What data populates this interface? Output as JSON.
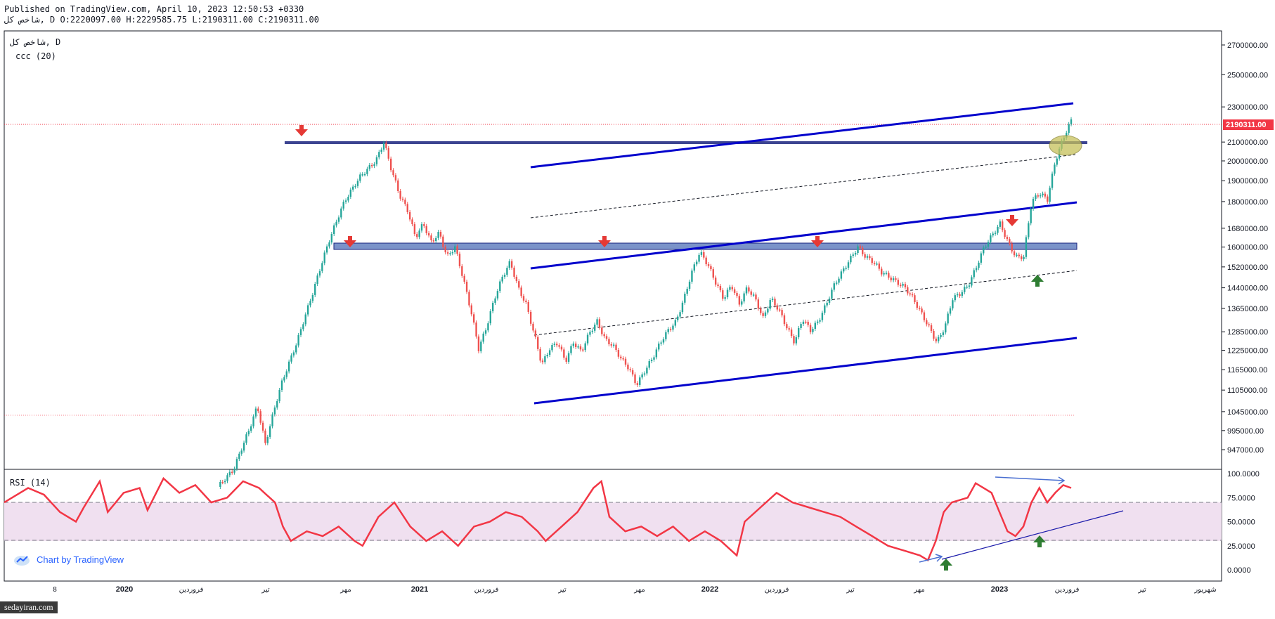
{
  "header": {
    "published": "Published on TradingView.com, April 10, 2023 12:50:53 +0330",
    "ohlc": "شاخص کل, D O:2220097.00 H:2229585.75 L:2190311.00 C:2190311.00"
  },
  "legend": {
    "symbol": "شاخص کل, D",
    "indicator": "ccc (20)"
  },
  "rsi_label": "RSI (14)",
  "watermark": "Chart by TradingView",
  "site_badge": "sedayiran.com",
  "colors": {
    "up": "#26a69a",
    "down": "#ef5350",
    "channel": "#0000cc",
    "zone_fill": "#7b93c9",
    "zone_border": "#1a237e",
    "rsi_line": "#f23645",
    "rsi_band": "#f0e0f0",
    "price_tag": "#f23645",
    "arrow_down": "#e53935",
    "arrow_up": "#2e7d32",
    "ellipse": "#c6c15a"
  },
  "chart_data": {
    "type": "candlestick",
    "timeframe": "D",
    "price_axis": {
      "ticks": [
        "2700000.00",
        "2500000.00",
        "2300000.00",
        "2100000.00",
        "2000000.00",
        "1900000.00",
        "1800000.00",
        "1680000.00",
        "1600000.00",
        "1520000.00",
        "1440000.00",
        "1365000.00",
        "1285000.00",
        "1225000.00",
        "1165000.00",
        "1105000.00",
        "1045000.00",
        "995000.00",
        "947000.00"
      ],
      "last_price": "2190311.00",
      "scale": "log"
    },
    "rsi_axis": {
      "ticks": [
        "100.0000",
        "75.0000",
        "50.0000",
        "25.0000",
        "0.0000"
      ],
      "band_upper": 70,
      "band_lower": 30
    },
    "x_axis": [
      "8",
      "2020",
      "فروردین",
      "تیر",
      "مهر",
      "2021",
      "فروردین",
      "تیر",
      "مهر",
      "2022",
      "فروردین",
      "تیر",
      "مهر",
      "2023",
      "فروردین",
      "تیر",
      "شهریور"
    ],
    "price_path": [
      [
        0,
        860000
      ],
      [
        2,
        900000
      ],
      [
        4,
        1000000
      ],
      [
        5,
        1060000
      ],
      [
        6,
        960000
      ],
      [
        7,
        1040000
      ],
      [
        8,
        1120000
      ],
      [
        10,
        1250000
      ],
      [
        12,
        1420000
      ],
      [
        14,
        1620000
      ],
      [
        16,
        1800000
      ],
      [
        18,
        1920000
      ],
      [
        20,
        2000000
      ],
      [
        21,
        2100000
      ],
      [
        22,
        1950000
      ],
      [
        23,
        1830000
      ],
      [
        24,
        1760000
      ],
      [
        25,
        1640000
      ],
      [
        26,
        1700000
      ],
      [
        27,
        1620000
      ],
      [
        28,
        1660000
      ],
      [
        29,
        1560000
      ],
      [
        30,
        1600000
      ],
      [
        31,
        1480000
      ],
      [
        32,
        1360000
      ],
      [
        33,
        1230000
      ],
      [
        34,
        1300000
      ],
      [
        35,
        1400000
      ],
      [
        36,
        1480000
      ],
      [
        37,
        1540000
      ],
      [
        38,
        1440000
      ],
      [
        39,
        1380000
      ],
      [
        40,
        1280000
      ],
      [
        41,
        1180000
      ],
      [
        42,
        1230000
      ],
      [
        43,
        1250000
      ],
      [
        44,
        1190000
      ],
      [
        45,
        1250000
      ],
      [
        46,
        1220000
      ],
      [
        47,
        1280000
      ],
      [
        48,
        1320000
      ],
      [
        49,
        1260000
      ],
      [
        50,
        1240000
      ],
      [
        51,
        1200000
      ],
      [
        52,
        1170000
      ],
      [
        53,
        1120000
      ],
      [
        54,
        1160000
      ],
      [
        55,
        1200000
      ],
      [
        56,
        1250000
      ],
      [
        57,
        1290000
      ],
      [
        58,
        1320000
      ],
      [
        59,
        1400000
      ],
      [
        60,
        1500000
      ],
      [
        61,
        1580000
      ],
      [
        62,
        1530000
      ],
      [
        63,
        1460000
      ],
      [
        64,
        1400000
      ],
      [
        65,
        1450000
      ],
      [
        66,
        1380000
      ],
      [
        67,
        1440000
      ],
      [
        68,
        1400000
      ],
      [
        69,
        1330000
      ],
      [
        70,
        1400000
      ],
      [
        71,
        1360000
      ],
      [
        72,
        1300000
      ],
      [
        73,
        1250000
      ],
      [
        74,
        1330000
      ],
      [
        75,
        1290000
      ],
      [
        76,
        1320000
      ],
      [
        77,
        1380000
      ],
      [
        78,
        1450000
      ],
      [
        79,
        1500000
      ],
      [
        80,
        1550000
      ],
      [
        81,
        1600000
      ],
      [
        82,
        1560000
      ],
      [
        83,
        1540000
      ],
      [
        84,
        1500000
      ],
      [
        85,
        1480000
      ],
      [
        86,
        1460000
      ],
      [
        87,
        1440000
      ],
      [
        88,
        1400000
      ],
      [
        89,
        1350000
      ],
      [
        90,
        1300000
      ],
      [
        91,
        1250000
      ],
      [
        92,
        1300000
      ],
      [
        93,
        1400000
      ],
      [
        94,
        1420000
      ],
      [
        95,
        1450000
      ],
      [
        96,
        1520000
      ],
      [
        97,
        1600000
      ],
      [
        98,
        1650000
      ],
      [
        99,
        1700000
      ],
      [
        100,
        1620000
      ],
      [
        101,
        1560000
      ],
      [
        102,
        1560000
      ],
      [
        103,
        1800000
      ],
      [
        104,
        1840000
      ],
      [
        105,
        1810000
      ],
      [
        106,
        2000000
      ],
      [
        107,
        2120000
      ],
      [
        108,
        2220000
      ]
    ],
    "rsi_path": [
      [
        0,
        70
      ],
      [
        3,
        85
      ],
      [
        5,
        78
      ],
      [
        7,
        60
      ],
      [
        9,
        50
      ],
      [
        10,
        65
      ],
      [
        12,
        92
      ],
      [
        13,
        60
      ],
      [
        15,
        80
      ],
      [
        17,
        85
      ],
      [
        18,
        62
      ],
      [
        20,
        95
      ],
      [
        22,
        80
      ],
      [
        24,
        88
      ],
      [
        26,
        70
      ],
      [
        28,
        75
      ],
      [
        30,
        92
      ],
      [
        32,
        85
      ],
      [
        34,
        70
      ],
      [
        35,
        45
      ],
      [
        36,
        30
      ],
      [
        38,
        40
      ],
      [
        40,
        35
      ],
      [
        42,
        45
      ],
      [
        44,
        30
      ],
      [
        45,
        25
      ],
      [
        47,
        55
      ],
      [
        49,
        70
      ],
      [
        51,
        45
      ],
      [
        53,
        30
      ],
      [
        55,
        40
      ],
      [
        57,
        25
      ],
      [
        59,
        45
      ],
      [
        61,
        50
      ],
      [
        63,
        60
      ],
      [
        65,
        55
      ],
      [
        67,
        40
      ],
      [
        68,
        30
      ],
      [
        70,
        45
      ],
      [
        72,
        60
      ],
      [
        74,
        85
      ],
      [
        75,
        92
      ],
      [
        76,
        55
      ],
      [
        78,
        40
      ],
      [
        80,
        45
      ],
      [
        82,
        35
      ],
      [
        84,
        45
      ],
      [
        86,
        30
      ],
      [
        88,
        40
      ],
      [
        90,
        30
      ],
      [
        92,
        15
      ],
      [
        93,
        50
      ],
      [
        95,
        65
      ],
      [
        97,
        80
      ],
      [
        99,
        70
      ],
      [
        101,
        65
      ],
      [
        103,
        60
      ],
      [
        105,
        55
      ],
      [
        107,
        45
      ],
      [
        109,
        35
      ],
      [
        111,
        25
      ],
      [
        113,
        20
      ],
      [
        115,
        15
      ],
      [
        116,
        10
      ],
      [
        117,
        30
      ],
      [
        118,
        60
      ],
      [
        119,
        70
      ],
      [
        121,
        75
      ],
      [
        122,
        90
      ],
      [
        124,
        80
      ],
      [
        125,
        60
      ],
      [
        126,
        40
      ],
      [
        127,
        35
      ],
      [
        128,
        45
      ],
      [
        129,
        70
      ],
      [
        130,
        85
      ],
      [
        131,
        70
      ],
      [
        132,
        80
      ],
      [
        133,
        88
      ],
      [
        134,
        85
      ]
    ],
    "annotations": {
      "resistance_zones": [
        "2100000",
        "1615000"
      ],
      "channel": "ascending",
      "down_arrows": 5,
      "up_arrows": 1,
      "rsi_divergence_arrows": 2
    }
  }
}
